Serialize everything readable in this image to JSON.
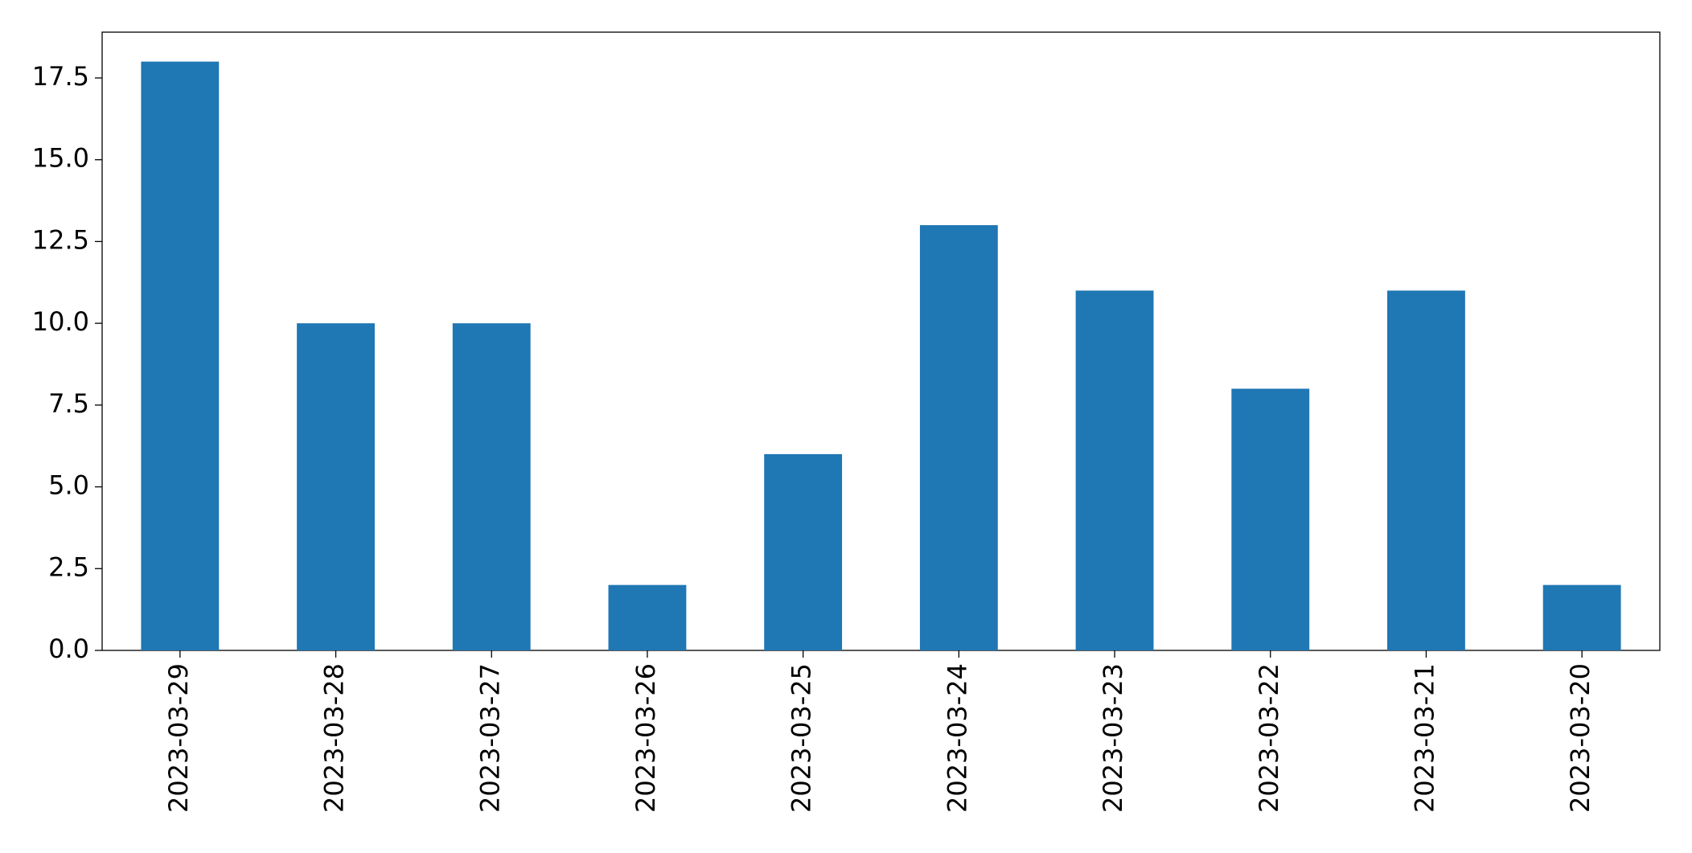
{
  "chart_data": {
    "type": "bar",
    "categories": [
      "2023-03-29",
      "2023-03-28",
      "2023-03-27",
      "2023-03-26",
      "2023-03-25",
      "2023-03-24",
      "2023-03-23",
      "2023-03-22",
      "2023-03-21",
      "2023-03-20"
    ],
    "values": [
      18,
      10,
      10,
      2,
      6,
      13,
      11,
      8,
      11,
      2
    ],
    "color": "#1f77b4",
    "ylim": [
      0,
      18.9
    ],
    "yticks": [
      {
        "value": 0,
        "label": "0.0"
      },
      2.5,
      {
        "value": 5,
        "label": "5.0"
      },
      7.5,
      {
        "value": 10,
        "label": "10.0"
      },
      12.5,
      {
        "value": 15,
        "label": "15.0"
      },
      17.5
    ],
    "grid": false
  }
}
